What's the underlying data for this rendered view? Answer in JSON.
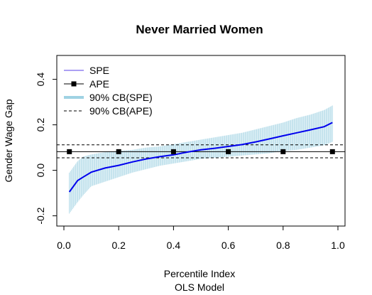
{
  "chart_data": {
    "type": "line",
    "title": "Never Married Women",
    "xlabel": "Percentile Index",
    "xlabel2": "OLS Model",
    "ylabel": "Gender Wage Gap",
    "xlim": [
      0.0,
      1.0
    ],
    "ylim": [
      -0.22,
      0.48
    ],
    "x_ticks": [
      "0.0",
      "0.2",
      "0.4",
      "0.6",
      "0.8",
      "1.0"
    ],
    "y_ticks": [
      "-0.2",
      "0.0",
      "0.2",
      "0.4"
    ],
    "legend_position": "top-left",
    "legend": [
      {
        "label": "SPE",
        "style": "line",
        "color": "#7b68ee"
      },
      {
        "label": "APE",
        "style": "line-square",
        "color": "#000000"
      },
      {
        "label": "90% CB(SPE)",
        "style": "thick-line",
        "color": "#9fd2e3"
      },
      {
        "label": "90% CB(APE)",
        "style": "dashed",
        "color": "#000000"
      }
    ],
    "spe": {
      "x": [
        0.02,
        0.05,
        0.07,
        0.1,
        0.15,
        0.2,
        0.25,
        0.3,
        0.35,
        0.4,
        0.45,
        0.5,
        0.55,
        0.6,
        0.65,
        0.7,
        0.75,
        0.8,
        0.85,
        0.9,
        0.95,
        0.98
      ],
      "y": [
        -0.095,
        -0.045,
        -0.03,
        -0.008,
        0.01,
        0.022,
        0.037,
        0.05,
        0.06,
        0.068,
        0.08,
        0.09,
        0.097,
        0.105,
        0.113,
        0.125,
        0.138,
        0.152,
        0.165,
        0.178,
        0.192,
        0.21
      ],
      "lower": [
        -0.19,
        -0.14,
        -0.11,
        -0.07,
        -0.05,
        -0.03,
        -0.01,
        0.005,
        0.02,
        0.03,
        0.04,
        0.05,
        0.055,
        0.06,
        0.065,
        0.07,
        0.075,
        0.085,
        0.09,
        0.1,
        0.11,
        0.125
      ],
      "upper": [
        -0.01,
        0.04,
        0.06,
        0.07,
        0.08,
        0.085,
        0.09,
        0.1,
        0.105,
        0.115,
        0.125,
        0.135,
        0.145,
        0.155,
        0.165,
        0.18,
        0.195,
        0.21,
        0.23,
        0.245,
        0.265,
        0.285
      ],
      "color": "#0000ee",
      "band_color": "#add8e6"
    },
    "ape": {
      "x": [
        0.02,
        0.2,
        0.4,
        0.6,
        0.8,
        0.98
      ],
      "y": [
        0.082,
        0.082,
        0.082,
        0.082,
        0.082,
        0.082
      ],
      "lower": 0.055,
      "upper": 0.112,
      "color": "#000000"
    }
  }
}
